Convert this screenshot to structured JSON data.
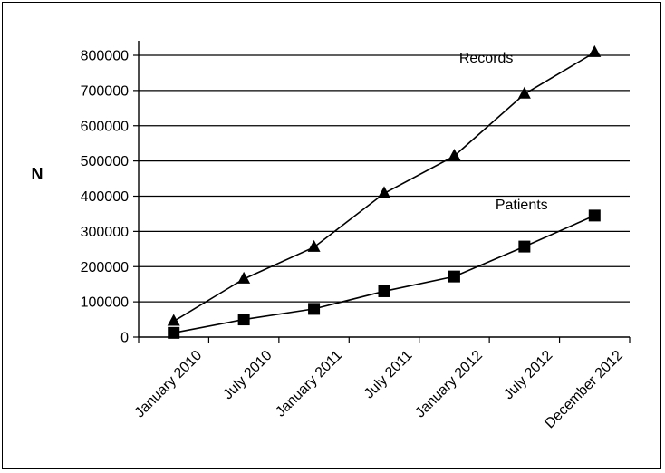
{
  "chart_data": {
    "type": "line",
    "title": "",
    "ylabel": "N",
    "xlabel": "",
    "categories": [
      "January 2010",
      "July 2010",
      "January 2011",
      "July 2011",
      "January 2012",
      "July 2012",
      "December 2012"
    ],
    "ylim": [
      0,
      800000
    ],
    "yticks": [
      "0",
      "100000",
      "200000",
      "300000",
      "400000",
      "500000",
      "600000",
      "700000",
      "800000"
    ],
    "grid": true,
    "legend": "none",
    "series": [
      {
        "name": "Records",
        "marker": "triangle",
        "values": [
          45000,
          165000,
          255000,
          408000,
          514000,
          690000,
          808000
        ]
      },
      {
        "name": "Patients",
        "marker": "square",
        "values": [
          12000,
          50000,
          80000,
          130000,
          172000,
          257000,
          345000
        ]
      }
    ]
  }
}
